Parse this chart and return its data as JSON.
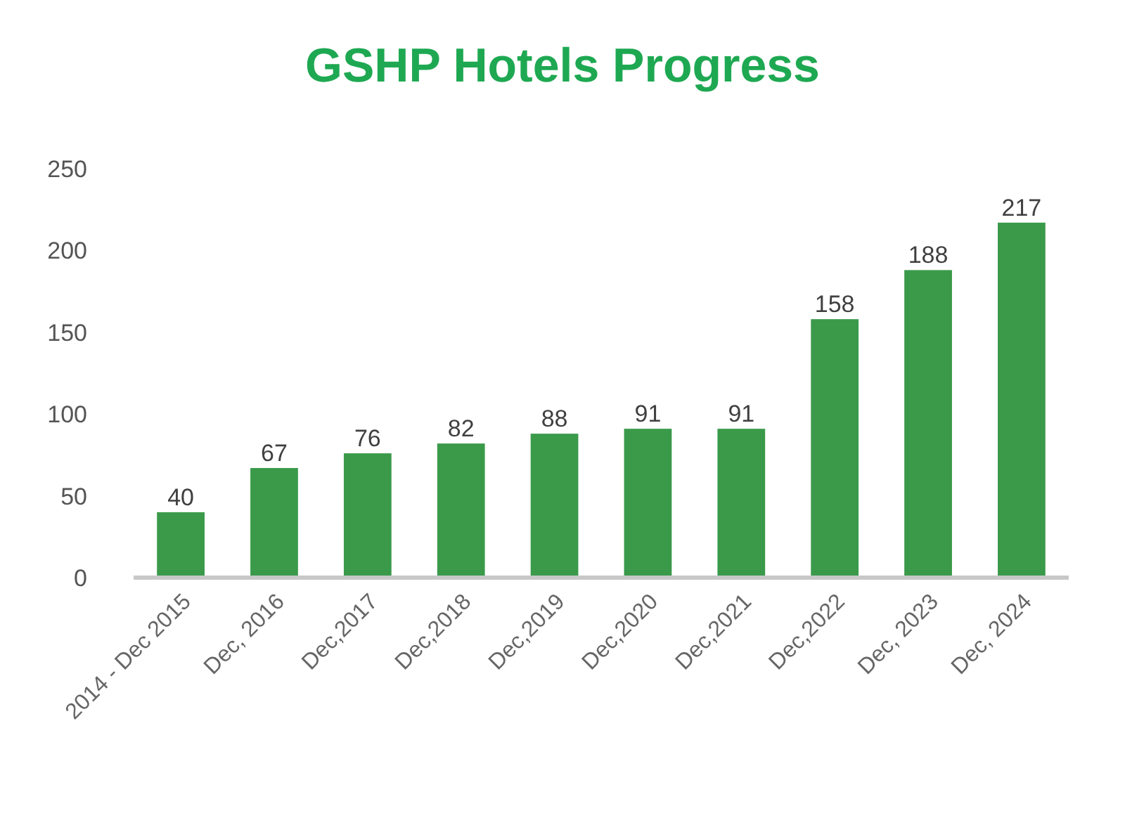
{
  "chart_data": {
    "type": "bar",
    "title": "GSHP Hotels Progress",
    "categories": [
      "2014 - Dec 2015",
      "Dec, 2016",
      "Dec,2017",
      "Dec,2018",
      "Dec,2019",
      "Dec,2020",
      "Dec,2021",
      "Dec,2022",
      "Dec, 2023",
      "Dec, 2024"
    ],
    "values": [
      40,
      67,
      76,
      82,
      88,
      91,
      91,
      158,
      188,
      217
    ],
    "color": "#3a9a4a",
    "ylim": [
      0,
      250
    ],
    "yticks": [
      0,
      50,
      100,
      150,
      200,
      250
    ],
    "grid": false,
    "data_labels": true
  }
}
